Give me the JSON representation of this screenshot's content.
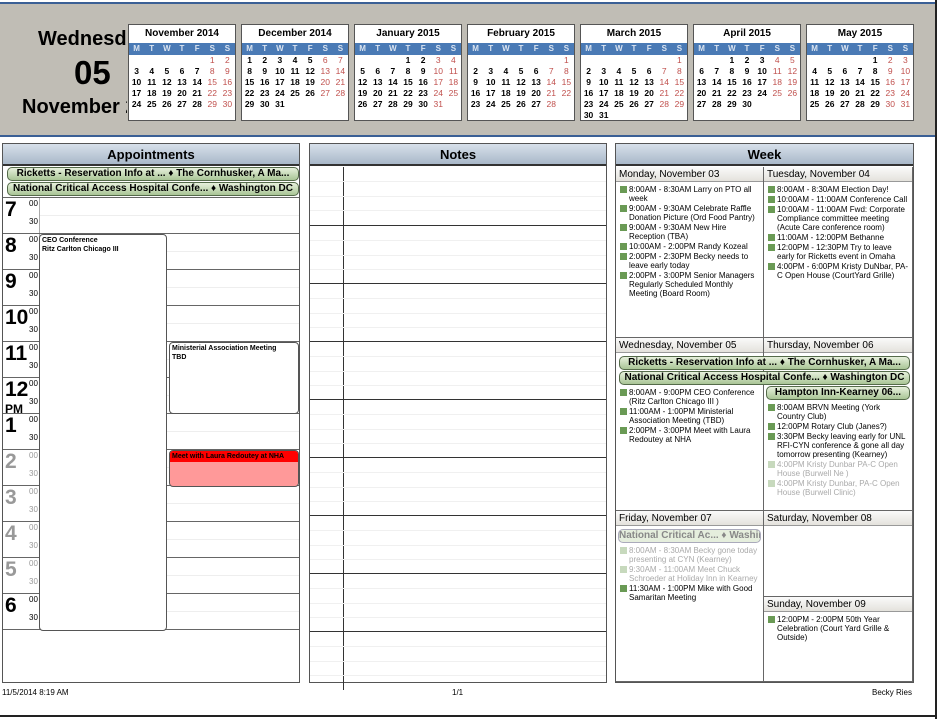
{
  "header": {
    "weekday": "Wednesday",
    "day": "05",
    "month_year": "November 2014"
  },
  "mini_calendars": {
    "weekdays": [
      "M",
      "T",
      "W",
      "T",
      "F",
      "S",
      "S"
    ],
    "months": [
      {
        "title": "November 2014",
        "weeks": [
          [
            "",
            "",
            "",
            "",
            "",
            "1",
            "2"
          ],
          [
            "3",
            "4",
            "5",
            "6",
            "7",
            "8",
            "9"
          ],
          [
            "10",
            "11",
            "12",
            "13",
            "14",
            "15",
            "16"
          ],
          [
            "17",
            "18",
            "19",
            "20",
            "21",
            "22",
            "23"
          ],
          [
            "24",
            "25",
            "26",
            "27",
            "28",
            "29",
            "30"
          ]
        ]
      },
      {
        "title": "December 2014",
        "weeks": [
          [
            "1",
            "2",
            "3",
            "4",
            "5",
            "6",
            "7"
          ],
          [
            "8",
            "9",
            "10",
            "11",
            "12",
            "13",
            "14"
          ],
          [
            "15",
            "16",
            "17",
            "18",
            "19",
            "20",
            "21"
          ],
          [
            "22",
            "23",
            "24",
            "25",
            "26",
            "27",
            "28"
          ],
          [
            "29",
            "30",
            "31",
            "",
            "",
            "",
            ""
          ]
        ]
      },
      {
        "title": "January 2015",
        "weeks": [
          [
            "",
            "",
            "",
            "1",
            "2",
            "3",
            "4"
          ],
          [
            "5",
            "6",
            "7",
            "8",
            "9",
            "10",
            "11"
          ],
          [
            "12",
            "13",
            "14",
            "15",
            "16",
            "17",
            "18"
          ],
          [
            "19",
            "20",
            "21",
            "22",
            "23",
            "24",
            "25"
          ],
          [
            "26",
            "27",
            "28",
            "29",
            "30",
            "31",
            ""
          ]
        ]
      },
      {
        "title": "February 2015",
        "weeks": [
          [
            "",
            "",
            "",
            "",
            "",
            "",
            "1"
          ],
          [
            "2",
            "3",
            "4",
            "5",
            "6",
            "7",
            "8"
          ],
          [
            "9",
            "10",
            "11",
            "12",
            "13",
            "14",
            "15"
          ],
          [
            "16",
            "17",
            "18",
            "19",
            "20",
            "21",
            "22"
          ],
          [
            "23",
            "24",
            "25",
            "26",
            "27",
            "28",
            ""
          ]
        ]
      },
      {
        "title": "March 2015",
        "weeks": [
          [
            "",
            "",
            "",
            "",
            "",
            "",
            "1"
          ],
          [
            "2",
            "3",
            "4",
            "5",
            "6",
            "7",
            "8"
          ],
          [
            "9",
            "10",
            "11",
            "12",
            "13",
            "14",
            "15"
          ],
          [
            "16",
            "17",
            "18",
            "19",
            "20",
            "21",
            "22"
          ],
          [
            "23",
            "24",
            "25",
            "26",
            "27",
            "28",
            "29"
          ],
          [
            "30",
            "31",
            "",
            "",
            "",
            "",
            ""
          ]
        ]
      },
      {
        "title": "April 2015",
        "weeks": [
          [
            "",
            "",
            "1",
            "2",
            "3",
            "4",
            "5"
          ],
          [
            "6",
            "7",
            "8",
            "9",
            "10",
            "11",
            "12"
          ],
          [
            "13",
            "14",
            "15",
            "16",
            "17",
            "18",
            "19"
          ],
          [
            "20",
            "21",
            "22",
            "23",
            "24",
            "25",
            "26"
          ],
          [
            "27",
            "28",
            "29",
            "30",
            "",
            "",
            ""
          ]
        ]
      },
      {
        "title": "May 2015",
        "weeks": [
          [
            "",
            "",
            "",
            "",
            "1",
            "2",
            "3"
          ],
          [
            "4",
            "5",
            "6",
            "7",
            "8",
            "9",
            "10"
          ],
          [
            "11",
            "12",
            "13",
            "14",
            "15",
            "16",
            "17"
          ],
          [
            "18",
            "19",
            "20",
            "21",
            "22",
            "23",
            "24"
          ],
          [
            "25",
            "26",
            "27",
            "28",
            "29",
            "30",
            "31"
          ]
        ]
      }
    ]
  },
  "appointments": {
    "title": "Appointments",
    "all_day": [
      "Ricketts - Reservation Info at ... ♦ The Cornhusker, A Ma...",
      "National Critical Access Hospital Confe... ♦ Washington DC"
    ],
    "hours": [
      {
        "h": "7"
      },
      {
        "h": "8"
      },
      {
        "h": "9"
      },
      {
        "h": "10"
      },
      {
        "h": "11"
      },
      {
        "h": "12",
        "pm": "PM"
      },
      {
        "h": "1"
      },
      {
        "h": "2",
        "grey": true
      },
      {
        "h": "3",
        "grey": true
      },
      {
        "h": "4",
        "grey": true
      },
      {
        "h": "5",
        "grey": true
      },
      {
        "h": "6"
      }
    ],
    "minute_labels": [
      "00",
      "30"
    ],
    "events": [
      {
        "title": "CEO Conference",
        "location": "Ritz Carlton Chicago III"
      },
      {
        "title": "Ministerial Association Meeting",
        "location": "TBD"
      },
      {
        "title": "Meet with Laura Redoutey at NHA",
        "color": "#ff9999"
      }
    ]
  },
  "notes": {
    "title": "Notes"
  },
  "week": {
    "title": "Week",
    "days": [
      {
        "label": "Monday, November 03",
        "events": [
          {
            "t": "8:00AM - 8:30AM Larry on PTO all week"
          },
          {
            "t": "9:00AM - 9:30AM Celebrate Raffle Donation Picture (Ord Food Pantry)"
          },
          {
            "t": "9:00AM - 9:30AM New Hire Reception (TBA)"
          },
          {
            "t": "10:00AM - 2:00PM Randy Kozeal"
          },
          {
            "t": "2:00PM - 2:30PM Becky needs to leave early today"
          },
          {
            "t": "2:00PM - 3:00PM Senior Managers Regularly Scheduled Monthly Meeting (Board Room)"
          }
        ]
      },
      {
        "label": "Tuesday, November 04",
        "events": [
          {
            "t": "8:00AM - 8:30AM Election Day!"
          },
          {
            "t": "10:00AM - 11:00AM Conference Call"
          },
          {
            "t": "10:00AM - 11:00AM Fwd: Corporate Compliance committee meeting (Acute Care conference room)"
          },
          {
            "t": "11:00AM - 12:00PM Bethanne"
          },
          {
            "t": "12:00PM - 12:30PM Try to leave early for Ricketts event in Omaha"
          },
          {
            "t": "4:00PM - 6:00PM Kristy DuNbar, PA-C Open House (CourtYard Grille)"
          }
        ]
      },
      {
        "label": "Wednesday, November 05",
        "events": [
          {
            "t": "8:00AM - 9:00PM CEO Conference (Ritz Carlton Chicago III )"
          },
          {
            "t": "11:00AM - 1:00PM Ministerial Association Meeting (TBD)"
          },
          {
            "t": "2:00PM - 3:00PM Meet with Laura Redoutey at NHA"
          }
        ]
      },
      {
        "label": "Thursday, November 06",
        "banner": "Hampton Inn-Kearney 06...",
        "events": [
          {
            "t": "8:00AM BRVN Meeting  (York Country Club)"
          },
          {
            "t": "12:00PM Rotary Club  (Janes?)"
          },
          {
            "t": "3:30PM Becky leaving early for UNL RFI-CYN conference & gone all day tomorrow presenting (Kearney)"
          },
          {
            "t": "4:00PM Kristy Dunbar PA-C Open House (Burwell Ne )",
            "faded": true
          },
          {
            "t": "4:00PM Kristy Dunbar, PA-C Open House (Burwell Clinic)",
            "faded": true
          }
        ]
      },
      {
        "label": "Friday, November 07",
        "banner": "National Critical Ac... ♦ Washin",
        "events": [
          {
            "t": "8:00AM - 8:30AM Becky gone today presenting at CYN (Kearney)",
            "faded": true
          },
          {
            "t": "9:30AM - 11:00AM Meet Chuck Schroeder at Holiday Inn in Kearney",
            "faded": true
          },
          {
            "t": "11:30AM - 1:00PM Mike with Good Samaritan Meeting"
          }
        ]
      },
      {
        "label": "Saturday, November 08",
        "events": []
      },
      {
        "label": "Sunday, November 09",
        "events": [
          {
            "t": "12:00PM - 2:00PM 50th Year Celebration  (Court Yard Grille & Outside)"
          }
        ]
      }
    ],
    "wed_thu_banners": [
      "Ricketts - Reservation Info at ... ♦ The Cornhusker, A Ma...",
      "National Critical Access Hospital Confe... ♦ Washington DC"
    ]
  },
  "footer": {
    "printed": "11/5/2014 8:19 AM",
    "page": "1/1",
    "owner": "Becky Ries"
  }
}
